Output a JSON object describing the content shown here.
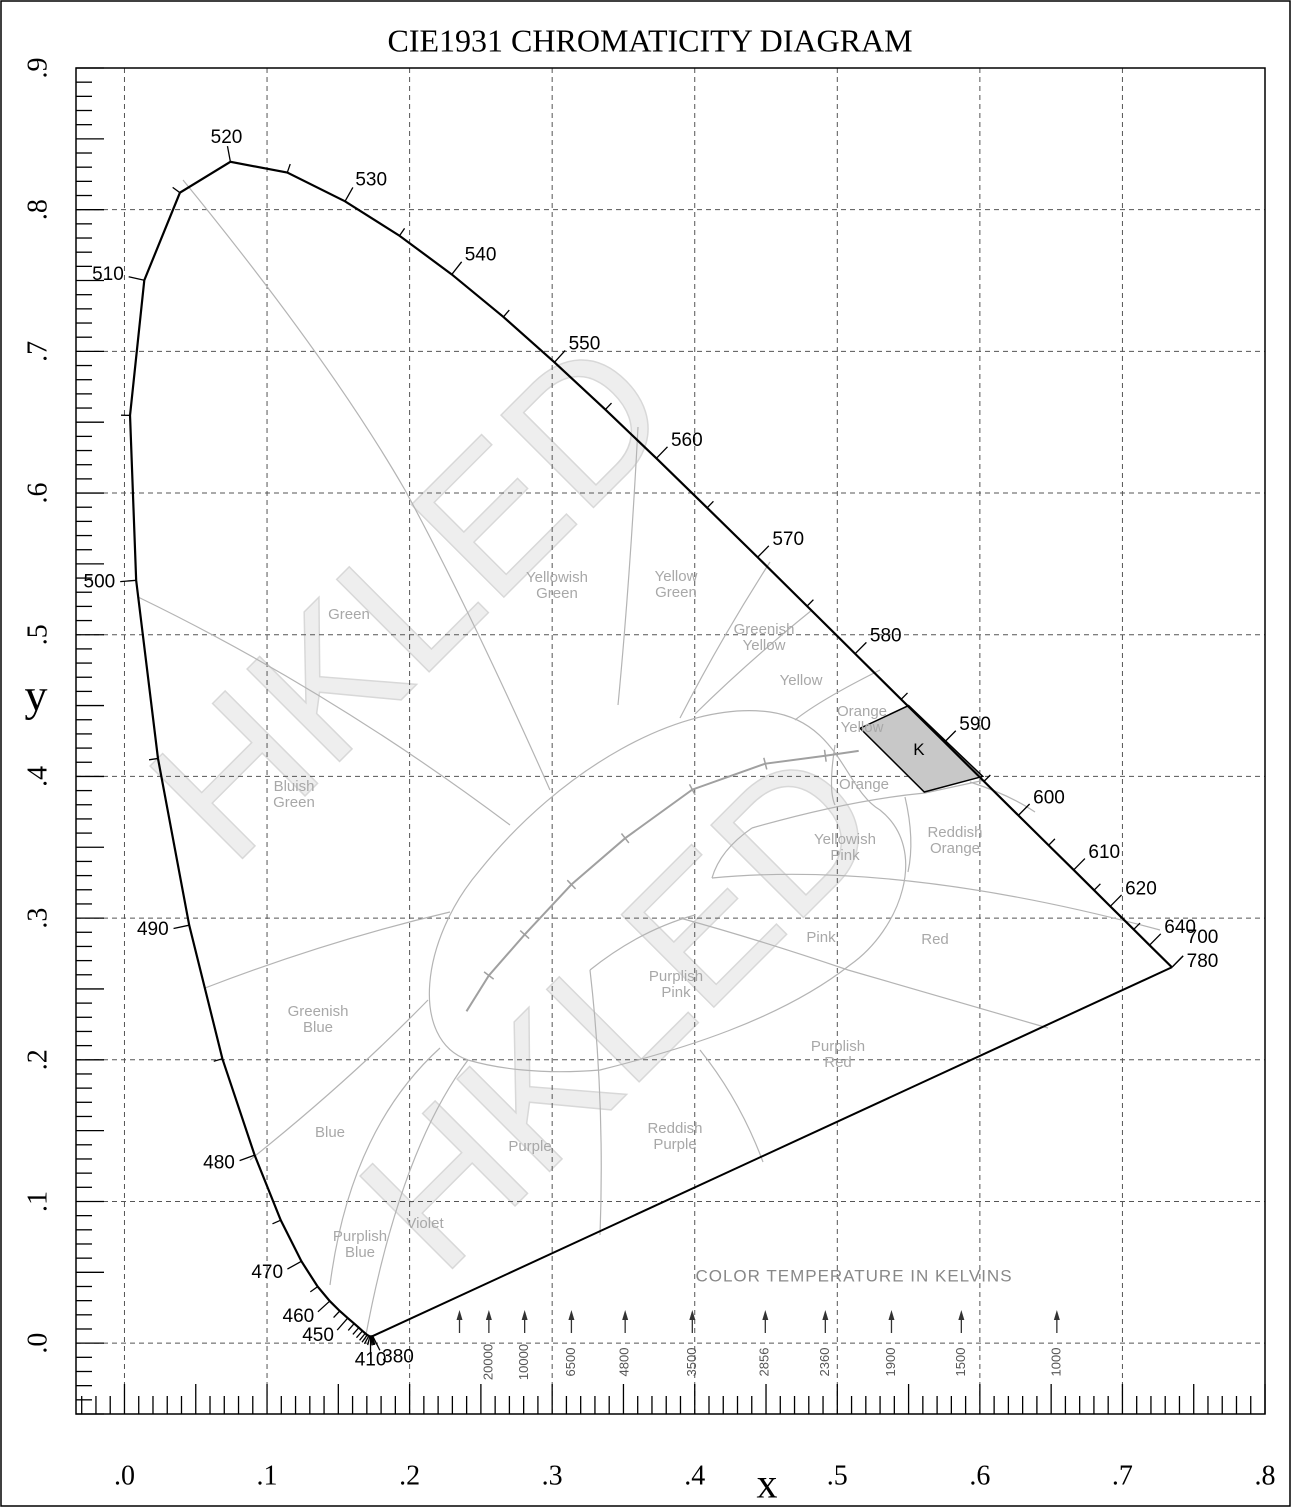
{
  "chart_data": {
    "type": "chromaticity",
    "title": "CIE1931 CHROMATICITY DIAGRAM",
    "x_label": "x",
    "y_label": "y",
    "xlim": [
      -0.034,
      0.8
    ],
    "ylim": [
      -0.05,
      0.9
    ],
    "xticks": [
      {
        "value": 0,
        "label": ".0"
      },
      {
        "value": 0.1,
        "label": ".1"
      },
      {
        "value": 0.2,
        "label": ".2"
      },
      {
        "value": 0.3,
        "label": ".3"
      },
      {
        "value": 0.4,
        "label": ".4"
      },
      {
        "value": 0.5,
        "label": ".5"
      },
      {
        "value": 0.6,
        "label": ".6"
      },
      {
        "value": 0.7,
        "label": ".7"
      },
      {
        "value": 0.8,
        "label": ".8"
      }
    ],
    "yticks": [
      {
        "value": 0,
        "label": ".0"
      },
      {
        "value": 0.1,
        "label": ".1"
      },
      {
        "value": 0.2,
        "label": ".2"
      },
      {
        "value": 0.3,
        "label": ".3"
      },
      {
        "value": 0.4,
        "label": ".4"
      },
      {
        "value": 0.5,
        "label": ".5"
      },
      {
        "value": 0.6,
        "label": ".6"
      },
      {
        "value": 0.7,
        "label": ".7"
      },
      {
        "value": 0.8,
        "label": ".8"
      },
      {
        "value": 0.9,
        "label": ".9"
      }
    ],
    "minor_tick_step": 0.01,
    "grid": true,
    "locus": {
      "color": "#000000",
      "x": [
        0.1741,
        0.174,
        0.1738,
        0.1736,
        0.1733,
        0.173,
        0.1726,
        0.1721,
        0.1714,
        0.1703,
        0.1689,
        0.1669,
        0.1644,
        0.1611,
        0.1566,
        0.151,
        0.144,
        0.1355,
        0.1241,
        0.1096,
        0.0913,
        0.0687,
        0.0454,
        0.0235,
        0.0082,
        0.0039,
        0.0139,
        0.0389,
        0.0743,
        0.1142,
        0.1547,
        0.1929,
        0.2296,
        0.2658,
        0.3016,
        0.3373,
        0.3731,
        0.4087,
        0.4441,
        0.4788,
        0.5125,
        0.5448,
        0.5752,
        0.6029,
        0.627,
        0.6482,
        0.6658,
        0.6801,
        0.6915,
        0.7079,
        0.719,
        0.7347,
        0.7347
      ],
      "y": [
        0.005,
        0.005,
        0.0049,
        0.0049,
        0.0048,
        0.0048,
        0.0048,
        0.0048,
        0.0051,
        0.0058,
        0.0069,
        0.0086,
        0.0109,
        0.0138,
        0.0177,
        0.0227,
        0.0297,
        0.0399,
        0.0578,
        0.0868,
        0.1327,
        0.2007,
        0.295,
        0.4127,
        0.5384,
        0.6548,
        0.7502,
        0.812,
        0.8338,
        0.8262,
        0.8059,
        0.7816,
        0.7543,
        0.7243,
        0.6923,
        0.6589,
        0.6245,
        0.5896,
        0.5547,
        0.5202,
        0.4866,
        0.4544,
        0.4242,
        0.3965,
        0.3725,
        0.3514,
        0.334,
        0.3197,
        0.3083,
        0.292,
        0.2809,
        0.2653,
        0.2653
      ],
      "wavelengths": [
        380,
        null,
        null,
        null,
        null,
        null,
        410,
        null,
        null,
        null,
        null,
        null,
        null,
        null,
        450,
        null,
        460,
        null,
        470,
        null,
        480,
        null,
        490,
        null,
        500,
        null,
        510,
        null,
        520,
        null,
        530,
        null,
        540,
        null,
        550,
        null,
        560,
        null,
        570,
        null,
        580,
        null,
        590,
        null,
        600,
        null,
        610,
        null,
        620,
        null,
        640,
        700,
        780
      ]
    },
    "planckian": {
      "color": "#a0a0a0",
      "x": [
        0.2399,
        0.2556,
        0.2807,
        0.3135,
        0.3512,
        0.3983,
        0.4495,
        0.4916,
        0.515
      ],
      "y": [
        0.2342,
        0.2595,
        0.2884,
        0.3237,
        0.3564,
        0.3907,
        0.409,
        0.4146,
        0.418
      ]
    },
    "cct": {
      "title": "COLOR TEMPERATURE IN KELVINS",
      "kelvins": [
        null,
        20000,
        10000,
        6500,
        4800,
        3500,
        2856,
        2360,
        1900,
        1500,
        1000
      ],
      "x": [
        0.235,
        0.2556,
        0.2807,
        0.3135,
        0.3512,
        0.3983,
        0.4495,
        0.4916,
        0.538,
        0.587,
        0.654
      ]
    },
    "k_region": {
      "label": "K",
      "color": "#c8c8c8",
      "x": [
        0.516,
        0.55,
        0.602,
        0.561
      ],
      "y": [
        0.434,
        0.45,
        0.4,
        0.389
      ]
    },
    "regions": [
      [
        "Green"
      ],
      [
        "Yellowish",
        "Green"
      ],
      [
        "Yellow",
        "Green"
      ],
      [
        "Greenish",
        "Yellow"
      ],
      [
        "Yellow"
      ],
      [
        "Orange",
        "Yellow"
      ],
      [
        "Orange"
      ],
      [
        "Bluish",
        "Green"
      ],
      [
        "Yellowish",
        "Pink"
      ],
      [
        "Reddish",
        "Orange"
      ],
      [
        "Pink"
      ],
      [
        "Red"
      ],
      [
        "Purplish",
        "Pink"
      ],
      [
        "Greenish",
        "Blue"
      ],
      [
        "Purplish",
        "Red"
      ],
      [
        "Blue"
      ],
      [
        "Purple"
      ],
      [
        "Reddish",
        "Purple"
      ],
      [
        "Violet"
      ],
      [
        "Purplish",
        "Blue"
      ]
    ],
    "watermark": "HKLED"
  }
}
